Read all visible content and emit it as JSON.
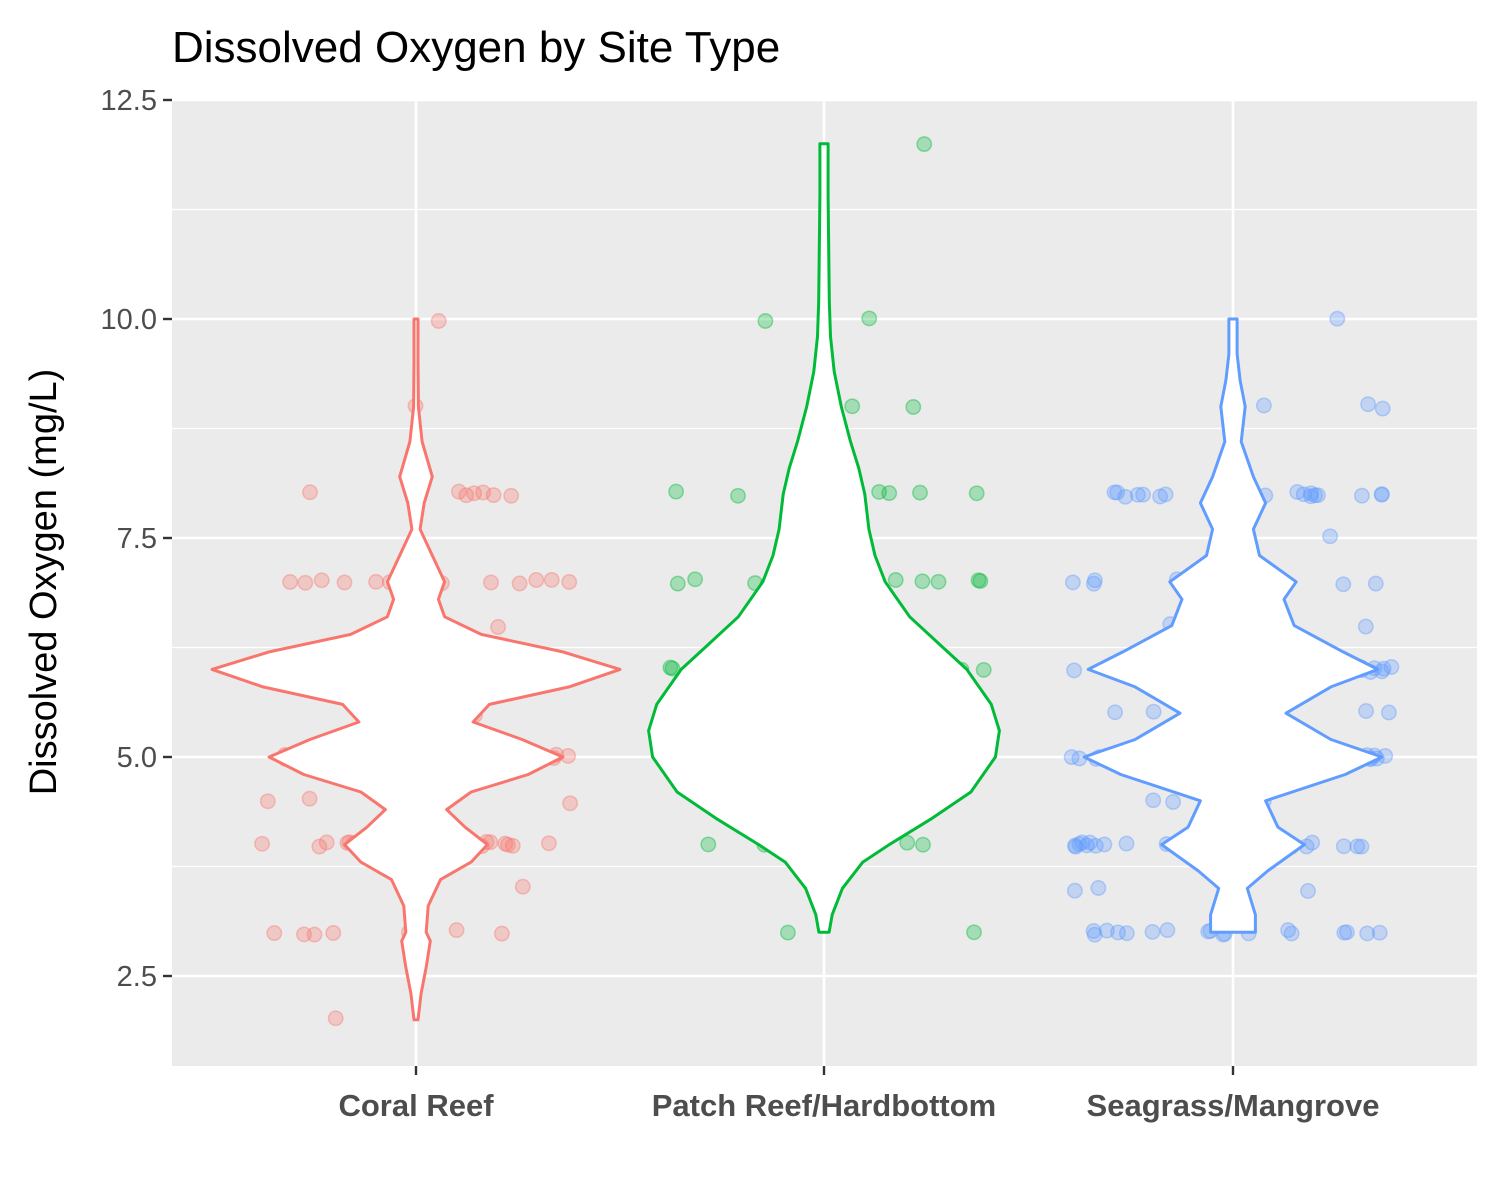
{
  "chart_data": {
    "type": "violin",
    "title": "Dissolved Oxygen by Site Type",
    "xlabel": "",
    "ylabel": "Dissolved Oxygen (mg/L)",
    "ylim": [
      1.5,
      12.5
    ],
    "yticks": [
      "2.5",
      "5.0",
      "7.5",
      "10.0",
      "12.5"
    ],
    "ytick_values": [
      2.5,
      5.0,
      7.5,
      10.0,
      12.5
    ],
    "grid": true,
    "legend": "none",
    "background": "#ebebeb",
    "categories": [
      "Coral Reef",
      "Patch Reef/Hardbottom",
      "Seagrass/Mangrove"
    ],
    "colors": [
      "#f8766d",
      "#00ba38",
      "#619cff"
    ],
    "series": [
      {
        "category": "Coral Reef",
        "violin": {
          "y": [
            2.0,
            2.3,
            2.6,
            2.9,
            3.0,
            3.3,
            3.6,
            3.8,
            4.0,
            4.2,
            4.4,
            4.6,
            4.8,
            5.0,
            5.2,
            5.4,
            5.6,
            5.8,
            6.0,
            6.2,
            6.4,
            6.6,
            6.8,
            7.0,
            7.3,
            7.6,
            7.9,
            8.2,
            8.6,
            9.0,
            9.5,
            10.0
          ],
          "halfwidth": [
            0.01,
            0.025,
            0.05,
            0.07,
            0.05,
            0.06,
            0.12,
            0.27,
            0.35,
            0.24,
            0.15,
            0.27,
            0.55,
            0.72,
            0.52,
            0.28,
            0.36,
            0.75,
            1.0,
            0.72,
            0.32,
            0.14,
            0.11,
            0.14,
            0.08,
            0.02,
            0.04,
            0.08,
            0.03,
            0.012,
            0.01,
            0.01
          ]
        },
        "points": [
          {
            "y": 8.0,
            "n": 7
          },
          {
            "y": 7.0,
            "n": 12
          },
          {
            "y": 6.5,
            "n": 1
          },
          {
            "y": 6.1,
            "n": 2
          },
          {
            "y": 6.0,
            "n": 42
          },
          {
            "y": 5.5,
            "n": 4
          },
          {
            "y": 5.0,
            "n": 38
          },
          {
            "y": 4.5,
            "n": 5
          },
          {
            "y": 4.0,
            "n": 18
          },
          {
            "y": 3.5,
            "n": 1
          },
          {
            "y": 3.0,
            "n": 7
          },
          {
            "y": 2.0,
            "n": 1
          },
          {
            "y": 9.0,
            "n": 1
          },
          {
            "y": 10.0,
            "n": 1
          }
        ]
      },
      {
        "category": "Patch Reef/Hardbottom",
        "violin": {
          "y": [
            3.0,
            3.2,
            3.5,
            3.8,
            4.0,
            4.3,
            4.6,
            5.0,
            5.3,
            5.6,
            6.0,
            6.3,
            6.6,
            7.0,
            7.3,
            7.6,
            8.0,
            8.3,
            8.6,
            9.0,
            9.4,
            9.8,
            10.2,
            10.6,
            11.0,
            11.4,
            12.0
          ],
          "halfwidth": [
            0.025,
            0.04,
            0.09,
            0.19,
            0.32,
            0.53,
            0.72,
            0.84,
            0.86,
            0.82,
            0.7,
            0.56,
            0.42,
            0.3,
            0.25,
            0.22,
            0.2,
            0.17,
            0.13,
            0.085,
            0.05,
            0.032,
            0.026,
            0.024,
            0.022,
            0.02,
            0.02
          ]
        },
        "points": [
          {
            "y": 12.0,
            "n": 1
          },
          {
            "y": 10.0,
            "n": 2
          },
          {
            "y": 9.0,
            "n": 2
          },
          {
            "y": 8.0,
            "n": 9
          },
          {
            "y": 7.0,
            "n": 9
          },
          {
            "y": 6.5,
            "n": 1
          },
          {
            "y": 6.0,
            "n": 20
          },
          {
            "y": 5.5,
            "n": 4
          },
          {
            "y": 5.0,
            "n": 20
          },
          {
            "y": 4.5,
            "n": 2
          },
          {
            "y": 4.0,
            "n": 6
          },
          {
            "y": 3.0,
            "n": 2
          }
        ]
      },
      {
        "category": "Seagrass/Mangrove",
        "violin": {
          "y": [
            3.0,
            3.2,
            3.5,
            3.7,
            4.0,
            4.2,
            4.5,
            4.8,
            5.0,
            5.2,
            5.5,
            5.8,
            6.0,
            6.2,
            6.5,
            6.8,
            7.0,
            7.3,
            7.6,
            7.9,
            8.2,
            8.6,
            9.0,
            9.3,
            9.6,
            10.0
          ],
          "halfwidth": [
            0.11,
            0.11,
            0.07,
            0.17,
            0.35,
            0.22,
            0.16,
            0.55,
            0.73,
            0.48,
            0.26,
            0.48,
            0.71,
            0.54,
            0.3,
            0.25,
            0.31,
            0.13,
            0.1,
            0.16,
            0.1,
            0.04,
            0.06,
            0.035,
            0.02,
            0.02
          ]
        },
        "points": [
          {
            "y": 10.0,
            "n": 1
          },
          {
            "y": 9.0,
            "n": 3
          },
          {
            "y": 8.0,
            "n": 18
          },
          {
            "y": 7.5,
            "n": 2
          },
          {
            "y": 7.0,
            "n": 16
          },
          {
            "y": 6.5,
            "n": 3
          },
          {
            "y": 6.0,
            "n": 48
          },
          {
            "y": 5.5,
            "n": 6
          },
          {
            "y": 5.2,
            "n": 1
          },
          {
            "y": 5.0,
            "n": 46
          },
          {
            "y": 4.5,
            "n": 3
          },
          {
            "y": 4.0,
            "n": 26
          },
          {
            "y": 3.5,
            "n": 3
          },
          {
            "y": 3.0,
            "n": 18
          }
        ]
      }
    ]
  }
}
